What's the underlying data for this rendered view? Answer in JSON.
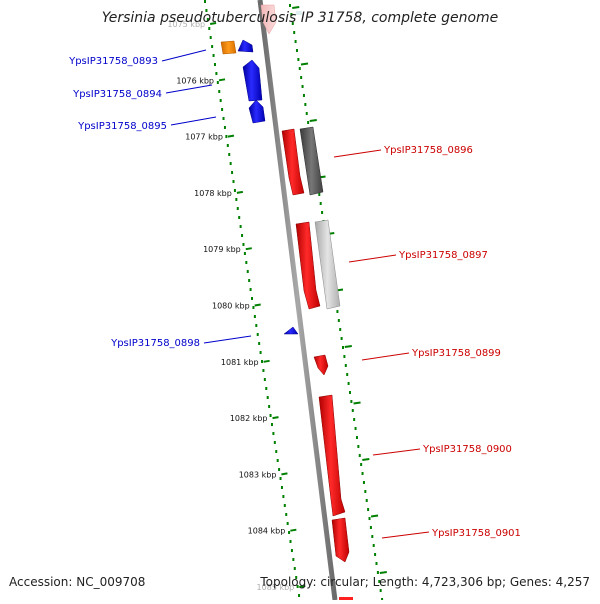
{
  "title": "Yersinia pseudotuberculosis IP 31758, complete genome",
  "footer": {
    "accession": "Accession: NC_009708",
    "topology": "Topology: circular; Length: 4,723,306 bp; Genes: 4,257"
  },
  "colors": {
    "backbone": "#808080",
    "forward_gene": "#ff0000",
    "reverse_gene": "#0000ff",
    "rna_gene": "#ff8c00",
    "annotation_dark": "#555555",
    "annotation_light": "#c0c0c0",
    "ruler_dots": "#008000",
    "forward_label": "#cc0000",
    "reverse_label": "#0000cc"
  },
  "ruler": {
    "unit": "kbp",
    "tick_labels": [
      "1075 kbp",
      "1076 kbp",
      "1077 kbp",
      "1078 kbp",
      "1079 kbp",
      "1080 kbp",
      "1081 kbp",
      "1082 kbp",
      "1083 kbp",
      "1084 kbp",
      "1085 kbp"
    ]
  },
  "genes": [
    {
      "label": "YpsIP31758_0893",
      "strand": "reverse",
      "type": "rna"
    },
    {
      "label": "YpsIP31758_0894",
      "strand": "reverse",
      "type": "cds"
    },
    {
      "label": "YpsIP31758_0895",
      "strand": "reverse",
      "type": "cds"
    },
    {
      "label": "YpsIP31758_0896",
      "strand": "forward",
      "type": "cds"
    },
    {
      "label": "YpsIP31758_0897",
      "strand": "forward",
      "type": "cds"
    },
    {
      "label": "YpsIP31758_0898",
      "strand": "reverse",
      "type": "cds"
    },
    {
      "label": "YpsIP31758_0899",
      "strand": "forward",
      "type": "cds"
    },
    {
      "label": "YpsIP31758_0900",
      "strand": "forward",
      "type": "cds"
    },
    {
      "label": "YpsIP31758_0901",
      "strand": "forward",
      "type": "cds"
    }
  ]
}
